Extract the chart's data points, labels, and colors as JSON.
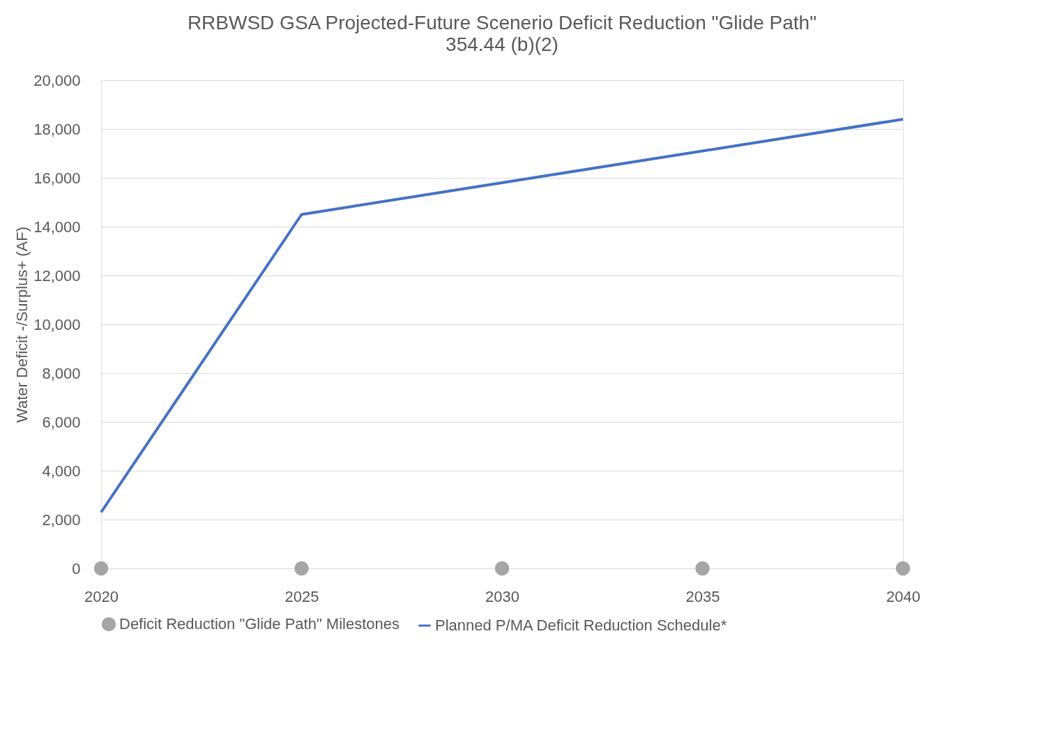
{
  "chart_data": {
    "type": "line",
    "title": "RRBWSD GSA Projected-Future Scenerio Deficit Reduction \"Glide Path\"",
    "subtitle": "354.44 (b)(2)",
    "ylabel": "Water Deficit -/Surplus+ (AF)",
    "x": [
      2020,
      2025,
      2030,
      2035,
      2040
    ],
    "series": [
      {
        "name": "Deficit Reduction \"Glide Path\" Milestones",
        "type": "scatter",
        "marker": "circle",
        "color": "#a5a5a5",
        "values": [
          0,
          0,
          0,
          0,
          0
        ]
      },
      {
        "name": "Planned P/MA Deficit Reduction Schedule*",
        "marker": "none",
        "color": "#4472c4",
        "values": [
          2300,
          14500,
          15800,
          17100,
          18400
        ]
      }
    ],
    "xlim": [
      2020,
      2040
    ],
    "xticks": [
      2020,
      2025,
      2030,
      2035,
      2040
    ],
    "ylim": [
      0,
      20000
    ],
    "yticks": [
      0,
      {
        "value": 2000,
        "label": "2,000"
      },
      {
        "value": 4000,
        "label": "4,000"
      },
      {
        "value": 6000,
        "label": "6,000"
      },
      {
        "value": 8000,
        "label": "8,000"
      },
      {
        "value": 10000,
        "label": "10,000"
      },
      {
        "value": 12000,
        "label": "12,000"
      },
      {
        "value": 14000,
        "label": "14,000"
      },
      {
        "value": 16000,
        "label": "16,000"
      },
      {
        "value": 18000,
        "label": "18,000"
      },
      {
        "value": 20000,
        "label": "20,000"
      }
    ],
    "grid": "y",
    "legend": "bottom"
  }
}
